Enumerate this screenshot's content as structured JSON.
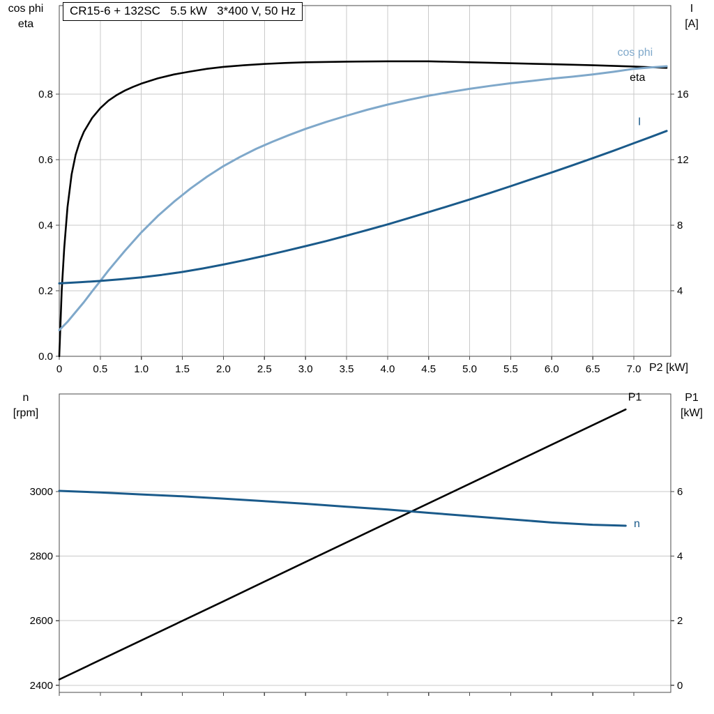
{
  "chart_data": [
    {
      "type": "line",
      "title": "CR15-6 + 132SC   5.5 kW   3*400 V, 50 Hz",
      "x": {
        "label": "P2 [kW]",
        "range": [
          0,
          7.45
        ],
        "ticks": [
          0,
          0.5,
          1,
          1.5,
          2,
          2.5,
          3,
          3.5,
          4,
          4.5,
          5,
          5.5,
          6,
          6.5,
          7
        ],
        "tick_labels": [
          "0",
          "0.5",
          "1.0",
          "1.5",
          "2.0",
          "2.5",
          "3.0",
          "3.5",
          "4.0",
          "4.5",
          "5.0",
          "5.5",
          "6.0",
          "6.5",
          "7.0"
        ]
      },
      "y_left": {
        "name_lines": [
          "cos phi",
          "eta"
        ],
        "range": [
          0,
          1.07
        ],
        "ticks": [
          0,
          0.2,
          0.4,
          0.6,
          0.8
        ],
        "tick_labels": [
          "0.0",
          "0.2",
          "0.4",
          "0.6",
          "0.8"
        ]
      },
      "y_right": {
        "name_lines": [
          "I",
          "[A]"
        ],
        "range": [
          0,
          21.4
        ],
        "ticks": [
          4,
          8,
          12,
          16
        ],
        "tick_labels": [
          "4",
          "8",
          "12",
          "16"
        ]
      },
      "grid_x": true,
      "grid_y": true,
      "series": [
        {
          "name": "eta",
          "axis": "left",
          "color": "#000000",
          "width": 2.6,
          "label_xy": [
            6.95,
            0.84
          ],
          "points": [
            [
              0,
              0
            ],
            [
              0.03,
              0.2
            ],
            [
              0.06,
              0.33
            ],
            [
              0.1,
              0.455
            ],
            [
              0.15,
              0.555
            ],
            [
              0.2,
              0.615
            ],
            [
              0.25,
              0.655
            ],
            [
              0.3,
              0.685
            ],
            [
              0.4,
              0.727
            ],
            [
              0.5,
              0.757
            ],
            [
              0.6,
              0.78
            ],
            [
              0.7,
              0.797
            ],
            [
              0.8,
              0.811
            ],
            [
              0.9,
              0.822
            ],
            [
              1,
              0.832
            ],
            [
              1.2,
              0.848
            ],
            [
              1.4,
              0.86
            ],
            [
              1.6,
              0.869
            ],
            [
              1.8,
              0.877
            ],
            [
              2,
              0.883
            ],
            [
              2.25,
              0.888
            ],
            [
              2.5,
              0.892
            ],
            [
              2.75,
              0.895
            ],
            [
              3,
              0.897
            ],
            [
              3.5,
              0.899
            ],
            [
              4,
              0.9
            ],
            [
              4.5,
              0.9
            ],
            [
              5,
              0.897
            ],
            [
              5.5,
              0.894
            ],
            [
              6,
              0.891
            ],
            [
              6.5,
              0.888
            ],
            [
              7,
              0.884
            ],
            [
              7.4,
              0.88
            ]
          ]
        },
        {
          "name": "cos phi",
          "axis": "left",
          "color": "#7fa8ca",
          "width": 3,
          "label_xy": [
            6.8,
            0.917
          ],
          "points": [
            [
              0,
              0.08
            ],
            [
              0.1,
              0.105
            ],
            [
              0.2,
              0.135
            ],
            [
              0.3,
              0.165
            ],
            [
              0.4,
              0.198
            ],
            [
              0.5,
              0.23
            ],
            [
              0.6,
              0.262
            ],
            [
              0.7,
              0.292
            ],
            [
              0.8,
              0.322
            ],
            [
              0.9,
              0.35
            ],
            [
              1,
              0.378
            ],
            [
              1.2,
              0.428
            ],
            [
              1.4,
              0.472
            ],
            [
              1.6,
              0.512
            ],
            [
              1.8,
              0.548
            ],
            [
              2,
              0.58
            ],
            [
              2.2,
              0.608
            ],
            [
              2.4,
              0.633
            ],
            [
              2.6,
              0.655
            ],
            [
              2.8,
              0.675
            ],
            [
              3,
              0.694
            ],
            [
              3.25,
              0.715
            ],
            [
              3.5,
              0.734
            ],
            [
              3.75,
              0.752
            ],
            [
              4,
              0.768
            ],
            [
              4.25,
              0.782
            ],
            [
              4.5,
              0.795
            ],
            [
              4.75,
              0.806
            ],
            [
              5,
              0.816
            ],
            [
              5.25,
              0.825
            ],
            [
              5.5,
              0.833
            ],
            [
              5.75,
              0.84
            ],
            [
              6,
              0.847
            ],
            [
              6.25,
              0.853
            ],
            [
              6.5,
              0.86
            ],
            [
              6.75,
              0.868
            ],
            [
              7,
              0.877
            ],
            [
              7.2,
              0.881
            ],
            [
              7.4,
              0.885
            ]
          ]
        },
        {
          "name": "I",
          "axis": "right",
          "color": "#1a5a8a",
          "width": 3,
          "label_xy": [
            7.05,
            14.1
          ],
          "points": [
            [
              0,
              4.45
            ],
            [
              0.25,
              4.52
            ],
            [
              0.5,
              4.6
            ],
            [
              0.75,
              4.7
            ],
            [
              1,
              4.82
            ],
            [
              1.25,
              4.97
            ],
            [
              1.5,
              5.15
            ],
            [
              1.75,
              5.36
            ],
            [
              2,
              5.6
            ],
            [
              2.25,
              5.86
            ],
            [
              2.5,
              6.13
            ],
            [
              2.75,
              6.42
            ],
            [
              3,
              6.72
            ],
            [
              3.25,
              7.03
            ],
            [
              3.5,
              7.36
            ],
            [
              3.75,
              7.7
            ],
            [
              4,
              8.05
            ],
            [
              4.25,
              8.42
            ],
            [
              4.5,
              8.8
            ],
            [
              4.75,
              9.18
            ],
            [
              5,
              9.57
            ],
            [
              5.25,
              9.97
            ],
            [
              5.5,
              10.38
            ],
            [
              5.75,
              10.8
            ],
            [
              6,
              11.22
            ],
            [
              6.25,
              11.65
            ],
            [
              6.5,
              12.09
            ],
            [
              6.75,
              12.54
            ],
            [
              7,
              13.0
            ],
            [
              7.2,
              13.37
            ],
            [
              7.4,
              13.75
            ]
          ]
        }
      ]
    },
    {
      "type": "line",
      "title": "",
      "x": {
        "label": "",
        "range": [
          0,
          7.45
        ],
        "ticks": [
          0,
          0.5,
          1,
          1.5,
          2,
          2.5,
          3,
          3.5,
          4,
          4.5,
          5,
          5.5,
          6,
          6.5,
          7
        ],
        "tick_labels": null
      },
      "y_left": {
        "name_lines": [
          "n",
          "[rpm]"
        ],
        "range": [
          2378,
          3302
        ],
        "ticks": [
          2400,
          2600,
          2800,
          3000
        ],
        "tick_labels": [
          "2400",
          "2600",
          "2800",
          "3000"
        ]
      },
      "y_right": {
        "name_lines": [
          "P1",
          "[kW]"
        ],
        "range": [
          -0.22,
          9.02
        ],
        "ticks": [
          0,
          2,
          4,
          6
        ],
        "tick_labels": [
          "0",
          "2",
          "4",
          "6"
        ]
      },
      "grid_x": false,
      "grid_y": true,
      "series": [
        {
          "name": "P1",
          "axis": "right",
          "color": "#000000",
          "width": 2.6,
          "label_xy": [
            6.93,
            8.82
          ],
          "points": [
            [
              0,
              0.18
            ],
            [
              1,
              1.39
            ],
            [
              2,
              2.6
            ],
            [
              3,
              3.82
            ],
            [
              4,
              5.03
            ],
            [
              5,
              6.24
            ],
            [
              6,
              7.45
            ],
            [
              6.9,
              8.54
            ]
          ]
        },
        {
          "name": "n",
          "axis": "left",
          "color": "#1a5a8a",
          "width": 3,
          "label_xy": [
            7.0,
            2890
          ],
          "points": [
            [
              0,
              3002
            ],
            [
              0.5,
              2997
            ],
            [
              1,
              2991
            ],
            [
              1.5,
              2985
            ],
            [
              2,
              2978
            ],
            [
              2.5,
              2970
            ],
            [
              3,
              2962
            ],
            [
              3.5,
              2953
            ],
            [
              4,
              2944
            ],
            [
              4.5,
              2934
            ],
            [
              5,
              2924
            ],
            [
              5.5,
              2914
            ],
            [
              6,
              2904
            ],
            [
              6.5,
              2897
            ],
            [
              6.9,
              2894
            ]
          ]
        }
      ]
    }
  ]
}
